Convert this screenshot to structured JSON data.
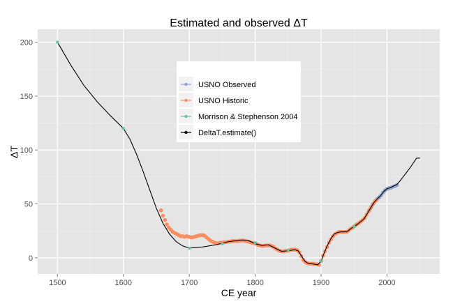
{
  "chart_data": {
    "type": "line",
    "title": "Estimated and observed ΔT",
    "xlabel": "CE year",
    "ylabel": "ΔT",
    "xlim": [
      1470,
      2080
    ],
    "ylim": [
      -15,
      212
    ],
    "x_ticks": [
      1500,
      1600,
      1700,
      1800,
      1900,
      2000
    ],
    "y_ticks": [
      0,
      50,
      100,
      150,
      200
    ],
    "grid": true,
    "legend_position": "top-center",
    "series": [
      {
        "name": "USNO Observed",
        "color": "#8da0cb",
        "style": "points",
        "points": [
          [
            1973,
            44
          ],
          [
            1976,
            47
          ],
          [
            1979,
            50
          ],
          [
            1982,
            52.5
          ],
          [
            1985,
            54.5
          ],
          [
            1988,
            56
          ],
          [
            1991,
            58
          ],
          [
            1994,
            60.5
          ],
          [
            1997,
            62.5
          ],
          [
            2000,
            64
          ],
          [
            2003,
            64.5
          ],
          [
            2006,
            65
          ],
          [
            2009,
            66
          ],
          [
            2012,
            66.5
          ],
          [
            2015,
            67.5
          ]
        ]
      },
      {
        "name": "USNO Historic",
        "color": "#fc8d62",
        "style": "points",
        "points": [
          [
            1657,
            44
          ],
          [
            1660,
            39
          ],
          [
            1663,
            35
          ],
          [
            1666,
            31
          ],
          [
            1669,
            28
          ],
          [
            1672,
            26
          ],
          [
            1675,
            24
          ],
          [
            1678,
            23
          ],
          [
            1681,
            22
          ],
          [
            1684,
            21
          ],
          [
            1687,
            20
          ],
          [
            1690,
            20
          ],
          [
            1693,
            19.5
          ],
          [
            1696,
            20
          ],
          [
            1699,
            19.5
          ],
          [
            1702,
            19
          ],
          [
            1705,
            19
          ],
          [
            1708,
            19.5
          ],
          [
            1711,
            20
          ],
          [
            1714,
            20.5
          ],
          [
            1717,
            21
          ],
          [
            1720,
            21
          ],
          [
            1723,
            20.5
          ],
          [
            1726,
            19
          ],
          [
            1729,
            17.5
          ],
          [
            1732,
            16
          ],
          [
            1735,
            15
          ],
          [
            1738,
            14
          ],
          [
            1741,
            13.5
          ],
          [
            1744,
            13.5
          ],
          [
            1747,
            14
          ],
          [
            1750,
            14
          ],
          [
            1753,
            14.5
          ],
          [
            1756,
            14.5
          ],
          [
            1759,
            15
          ],
          [
            1762,
            15
          ],
          [
            1765,
            15.5
          ],
          [
            1768,
            15.5
          ],
          [
            1771,
            15.5
          ],
          [
            1774,
            15.5
          ],
          [
            1777,
            16
          ],
          [
            1780,
            16
          ],
          [
            1783,
            16
          ],
          [
            1786,
            15.5
          ],
          [
            1789,
            15
          ],
          [
            1792,
            14.5
          ],
          [
            1795,
            14
          ],
          [
            1798,
            13.5
          ],
          [
            1801,
            13
          ],
          [
            1804,
            12
          ],
          [
            1807,
            11.5
          ],
          [
            1810,
            11
          ],
          [
            1813,
            11
          ],
          [
            1816,
            11.5
          ],
          [
            1819,
            11.5
          ],
          [
            1822,
            11.5
          ],
          [
            1825,
            11
          ],
          [
            1828,
            10
          ],
          [
            1831,
            8.5
          ],
          [
            1834,
            7.5
          ],
          [
            1837,
            6.5
          ],
          [
            1840,
            6
          ],
          [
            1843,
            6
          ],
          [
            1846,
            6.5
          ],
          [
            1849,
            6.5
          ],
          [
            1852,
            7
          ],
          [
            1855,
            7.5
          ],
          [
            1858,
            7.5
          ],
          [
            1861,
            7.5
          ],
          [
            1864,
            7
          ],
          [
            1867,
            5
          ],
          [
            1870,
            1.5
          ],
          [
            1873,
            -2
          ],
          [
            1876,
            -4
          ],
          [
            1879,
            -5
          ],
          [
            1882,
            -5.5
          ],
          [
            1885,
            -5.5
          ],
          [
            1888,
            -5.5
          ],
          [
            1891,
            -6
          ],
          [
            1894,
            -6
          ],
          [
            1897,
            -6.5
          ],
          [
            1900,
            -3
          ],
          [
            1903,
            2
          ],
          [
            1906,
            6
          ],
          [
            1909,
            10
          ],
          [
            1912,
            14
          ],
          [
            1915,
            17
          ],
          [
            1918,
            20
          ],
          [
            1921,
            22
          ],
          [
            1924,
            23
          ],
          [
            1927,
            24
          ],
          [
            1930,
            24
          ],
          [
            1933,
            24
          ],
          [
            1936,
            24
          ],
          [
            1939,
            24
          ],
          [
            1942,
            25.5
          ],
          [
            1945,
            27
          ],
          [
            1948,
            28
          ],
          [
            1951,
            29.5
          ],
          [
            1954,
            31
          ],
          [
            1957,
            32
          ],
          [
            1960,
            33.5
          ],
          [
            1963,
            35
          ],
          [
            1966,
            37
          ],
          [
            1969,
            40
          ],
          [
            1972,
            43
          ],
          [
            1975,
            46
          ],
          [
            1978,
            49
          ],
          [
            1981,
            51.5
          ],
          [
            1984,
            53.5
          ]
        ]
      },
      {
        "name": "Morrison & Stephenson 2004",
        "color": "#66c2a5",
        "style": "points",
        "points": [
          [
            1500,
            200
          ],
          [
            1600,
            120
          ],
          [
            1700,
            9
          ],
          [
            1750,
            13
          ],
          [
            1800,
            14
          ],
          [
            1850,
            7
          ],
          [
            1900,
            -3
          ],
          [
            1950,
            29
          ]
        ]
      },
      {
        "name": "DeltaT.estimate()",
        "color": "#000000",
        "style": "line",
        "points": [
          [
            1500,
            200
          ],
          [
            1520,
            179
          ],
          [
            1540,
            160
          ],
          [
            1560,
            145
          ],
          [
            1580,
            132
          ],
          [
            1600,
            120
          ],
          [
            1610,
            110
          ],
          [
            1620,
            96
          ],
          [
            1630,
            80
          ],
          [
            1640,
            63
          ],
          [
            1650,
            46
          ],
          [
            1660,
            32
          ],
          [
            1670,
            22
          ],
          [
            1680,
            15
          ],
          [
            1690,
            11
          ],
          [
            1700,
            9
          ],
          [
            1720,
            10
          ],
          [
            1740,
            12
          ],
          [
            1760,
            15
          ],
          [
            1780,
            16.5
          ],
          [
            1790,
            16
          ],
          [
            1800,
            13
          ],
          [
            1810,
            11.5
          ],
          [
            1820,
            12
          ],
          [
            1830,
            9
          ],
          [
            1840,
            6
          ],
          [
            1850,
            6.5
          ],
          [
            1860,
            7.5
          ],
          [
            1865,
            6.5
          ],
          [
            1870,
            2
          ],
          [
            1875,
            -3
          ],
          [
            1880,
            -5
          ],
          [
            1890,
            -6
          ],
          [
            1895,
            -6.5
          ],
          [
            1900,
            -3
          ],
          [
            1905,
            5
          ],
          [
            1910,
            12
          ],
          [
            1915,
            18
          ],
          [
            1920,
            22
          ],
          [
            1925,
            23.5
          ],
          [
            1930,
            24
          ],
          [
            1935,
            24
          ],
          [
            1940,
            24.5
          ],
          [
            1945,
            27
          ],
          [
            1950,
            29
          ],
          [
            1955,
            31
          ],
          [
            1960,
            33.5
          ],
          [
            1965,
            36
          ],
          [
            1970,
            41
          ],
          [
            1975,
            46
          ],
          [
            1980,
            51
          ],
          [
            1985,
            54.5
          ],
          [
            1990,
            57.5
          ],
          [
            1995,
            61.5
          ],
          [
            2000,
            64
          ],
          [
            2005,
            65
          ],
          [
            2010,
            66.5
          ],
          [
            2015,
            68
          ],
          [
            2020,
            71.5
          ],
          [
            2025,
            75.5
          ],
          [
            2030,
            79.5
          ],
          [
            2035,
            83.5
          ],
          [
            2040,
            88
          ],
          [
            2045,
            92.5
          ],
          [
            2050,
            92.5
          ]
        ]
      }
    ]
  }
}
